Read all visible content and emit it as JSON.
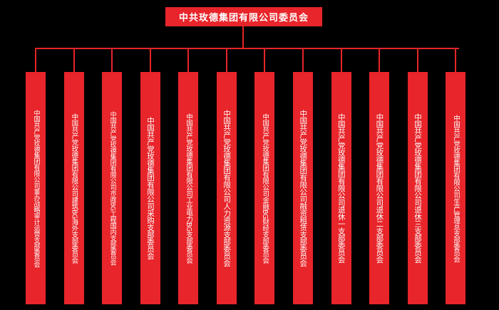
{
  "colors": {
    "background": "#000000",
    "box_red": "#e8252a",
    "line_red": "#e8252a",
    "text_white": "#ffffff"
  },
  "root": {
    "label": "中共玫德集团有限公司委员会"
  },
  "branches": [
    {
      "label": "中国共产党玫德集团有限公司董办战略审计运营支部委员会"
    },
    {
      "label": "中国共产党玫德集团有限公司建筑BG海外支部委员会"
    },
    {
      "label": "中国共产党玫德集团有限公司市政BG工程国内支部委员会"
    },
    {
      "label": "中国共产党玫德集团有限公司采购支部委员会"
    },
    {
      "label": "中国共产党玫德集团有限公司工业电力BG支部委员会"
    },
    {
      "label": "中国共产党玫德集团有限公司人力资源支部委员会"
    },
    {
      "label": "中国共产党玫德集团有限公司金融BG财经支部委员会"
    },
    {
      "label": "中国共产党玫德集团有限公司融资租赁支部委员会"
    },
    {
      "label": "中国共产党玫德集团有限公司退休一支部委员会"
    },
    {
      "label": "中国共产党玫德集团有限公司退休二支部委员会"
    },
    {
      "label": "中国共产党玫德集团有限公司退休三支部委员会"
    },
    {
      "label": "中国共产党玫德集团有限公司生产管理总支部委员会"
    }
  ],
  "layout_meta": {
    "branch_count": "12"
  }
}
